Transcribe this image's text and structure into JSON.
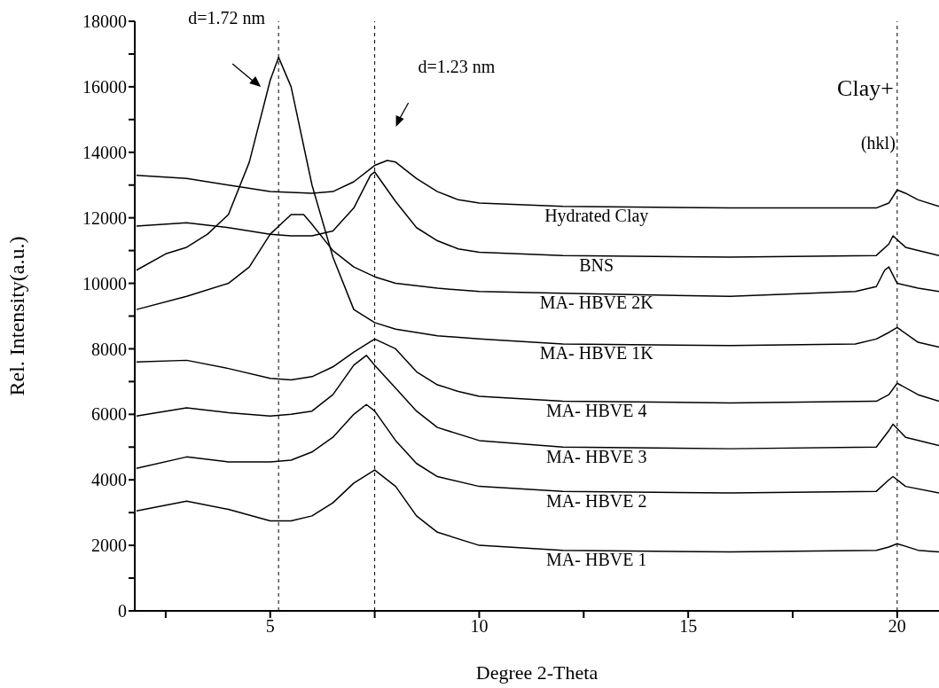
{
  "chart_data": {
    "type": "line",
    "xlabel": "Degree 2-Theta",
    "ylabel": "Rel. Intensity(a.u.)",
    "xlim": [
      1.76,
      21
    ],
    "xticks": [
      {
        "value": 2.5,
        "label": null
      },
      5,
      {
        "value": 7.5,
        "label": null
      },
      10,
      {
        "value": 12.5,
        "label": null
      },
      15,
      {
        "value": 17.5,
        "label": null
      },
      20
    ],
    "ylim": [
      0,
      18000
    ],
    "yticks": [
      0,
      {
        "value": 1000,
        "label": null
      },
      2000,
      {
        "value": 3000,
        "label": null
      },
      4000,
      {
        "value": 5000,
        "label": null
      },
      6000,
      {
        "value": 7000,
        "label": null
      },
      8000,
      {
        "value": 9000,
        "label": null
      },
      10000,
      {
        "value": 11000,
        "label": null
      },
      12000,
      {
        "value": 13000,
        "label": null
      },
      14000,
      {
        "value": 15000,
        "label": null
      },
      16000,
      {
        "value": 17000,
        "label": null
      },
      18000
    ],
    "grid": false,
    "legend": false,
    "marker": "none",
    "line_style": "solid",
    "series": [
      {
        "name": "Hydrated Clay",
        "color": "#000000",
        "x": [
          1.8,
          3,
          4,
          5,
          6,
          6.5,
          7,
          7.5,
          7.8,
          8,
          8.5,
          9,
          9.5,
          10,
          12,
          16,
          19.5,
          19.8,
          20,
          20.2,
          20.5,
          21
        ],
        "values": [
          13300,
          13200,
          13000,
          12800,
          12750,
          12800,
          13100,
          13600,
          13750,
          13700,
          13200,
          12800,
          12550,
          12450,
          12350,
          12300,
          12300,
          12450,
          12850,
          12750,
          12550,
          12350
        ]
      },
      {
        "name": "BNS",
        "color": "#000000",
        "x": [
          1.8,
          3,
          4,
          5,
          5.5,
          6,
          6.5,
          7,
          7.4,
          7.5,
          8,
          8.5,
          9,
          9.5,
          10,
          12,
          16,
          19.5,
          19.8,
          19.9,
          20.2,
          21
        ],
        "values": [
          11750,
          11850,
          11700,
          11500,
          11450,
          11450,
          11600,
          12300,
          13300,
          13400,
          12500,
          11700,
          11300,
          11050,
          10950,
          10850,
          10800,
          10850,
          11200,
          11450,
          11100,
          10850
        ]
      },
      {
        "name": "MA- HBVE 2K",
        "color": "#000000",
        "x": [
          1.8,
          3,
          4,
          4.5,
          5,
          5.5,
          5.8,
          6,
          6.5,
          7,
          7.5,
          8,
          9,
          10,
          12,
          16,
          19,
          19.5,
          19.7,
          19.8,
          20,
          20.5,
          21
        ],
        "values": [
          9200,
          9600,
          10000,
          10500,
          11500,
          12100,
          12100,
          11800,
          11000,
          10500,
          10200,
          10000,
          9850,
          9750,
          9700,
          9600,
          9750,
          9900,
          10400,
          10500,
          10000,
          9850,
          9750
        ]
      },
      {
        "name": "MA- HBVE 1K",
        "color": "#000000",
        "x": [
          1.8,
          2.5,
          3,
          3.5,
          4,
          4.5,
          5,
          5.2,
          5.5,
          6,
          6.5,
          7,
          7.5,
          8,
          9,
          10,
          12,
          16,
          19,
          19.5,
          19.8,
          20,
          20.5,
          21
        ],
        "values": [
          10400,
          10900,
          11100,
          11500,
          12100,
          13700,
          16200,
          16900,
          16000,
          13000,
          10800,
          9200,
          8800,
          8600,
          8400,
          8300,
          8150,
          8100,
          8150,
          8300,
          8500,
          8650,
          8200,
          8050
        ]
      },
      {
        "name": "MA- HBVE 4",
        "color": "#000000",
        "x": [
          1.8,
          3,
          4,
          5,
          5.5,
          6,
          6.5,
          7,
          7.5,
          8,
          8.5,
          9,
          9.5,
          10,
          12,
          16,
          19.5,
          19.8,
          20,
          20.5,
          21
        ],
        "values": [
          7600,
          7650,
          7400,
          7100,
          7050,
          7150,
          7450,
          7900,
          8300,
          8000,
          7300,
          6900,
          6700,
          6550,
          6400,
          6350,
          6400,
          6600,
          6950,
          6600,
          6400
        ]
      },
      {
        "name": "MA- HBVE 3",
        "color": "#000000",
        "x": [
          1.8,
          3,
          4,
          5,
          5.5,
          6,
          6.5,
          7,
          7.3,
          7.5,
          8,
          8.5,
          9,
          10,
          12,
          16,
          19.5,
          19.8,
          19.9,
          20.2,
          21
        ],
        "values": [
          5950,
          6200,
          6050,
          5950,
          6000,
          6100,
          6600,
          7500,
          7800,
          7500,
          6800,
          6100,
          5600,
          5200,
          5000,
          4950,
          5000,
          5500,
          5700,
          5300,
          5050
        ]
      },
      {
        "name": "MA- HBVE 2",
        "color": "#000000",
        "x": [
          1.8,
          3,
          4,
          5,
          5.5,
          6,
          6.5,
          7,
          7.3,
          7.5,
          8,
          8.5,
          9,
          10,
          12,
          16,
          19.5,
          19.8,
          19.9,
          20.2,
          21
        ],
        "values": [
          4350,
          4700,
          4550,
          4550,
          4600,
          4850,
          5300,
          6000,
          6300,
          6100,
          5200,
          4500,
          4100,
          3800,
          3650,
          3600,
          3650,
          4000,
          4100,
          3800,
          3600
        ]
      },
      {
        "name": "MA- HBVE 1",
        "color": "#000000",
        "x": [
          1.8,
          3,
          4,
          5,
          5.5,
          6,
          6.5,
          7,
          7.5,
          8,
          8.5,
          9,
          10,
          12,
          16,
          19.5,
          19.8,
          20,
          20.5,
          21
        ],
        "values": [
          3050,
          3350,
          3100,
          2750,
          2750,
          2900,
          3300,
          3900,
          4300,
          3800,
          2900,
          2400,
          2000,
          1850,
          1800,
          1850,
          1950,
          2050,
          1850,
          1800
        ]
      }
    ],
    "ref_lines": [
      {
        "axis": "x",
        "value": 5.2,
        "color": "#000000",
        "line_style": "dashed"
      },
      {
        "axis": "x",
        "value": 7.5,
        "color": "#000000",
        "line_style": "dashed"
      },
      {
        "axis": "x",
        "value": 20.0,
        "color": "#000000",
        "line_style": "dashed"
      }
    ],
    "annotations": [
      "d=1.72 nm",
      "d=1.23 nm",
      "Clay+",
      "(hkl)"
    ]
  }
}
